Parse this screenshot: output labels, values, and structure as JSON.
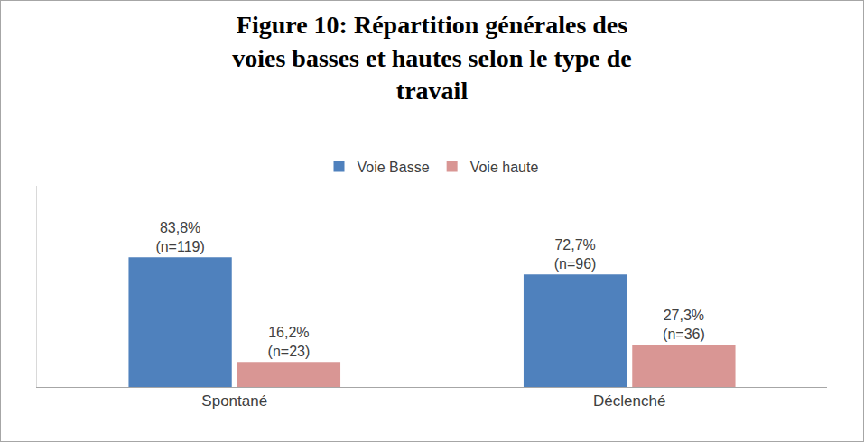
{
  "chart_data": {
    "type": "bar",
    "title": "Figure 10: Répartition générales des voies basses et hautes selon le type de travail",
    "categories": [
      "Spontané",
      "Déclenché"
    ],
    "series": [
      {
        "name": "Voie Basse",
        "color": "#4f81bd",
        "values": [
          83.8,
          72.7
        ],
        "value_labels": [
          "83,8%\n(n=119)",
          "72,7%\n(n=96)"
        ]
      },
      {
        "name": "Voie haute",
        "color": "#d99694",
        "values": [
          16.2,
          27.3
        ],
        "value_labels": [
          "16,2%\n(n=23)",
          "27,3%\n(n=36)"
        ]
      }
    ],
    "ylim": [
      0,
      130
    ],
    "grid": false,
    "legend": "top",
    "data_labels": true,
    "tick_labels": "x"
  }
}
